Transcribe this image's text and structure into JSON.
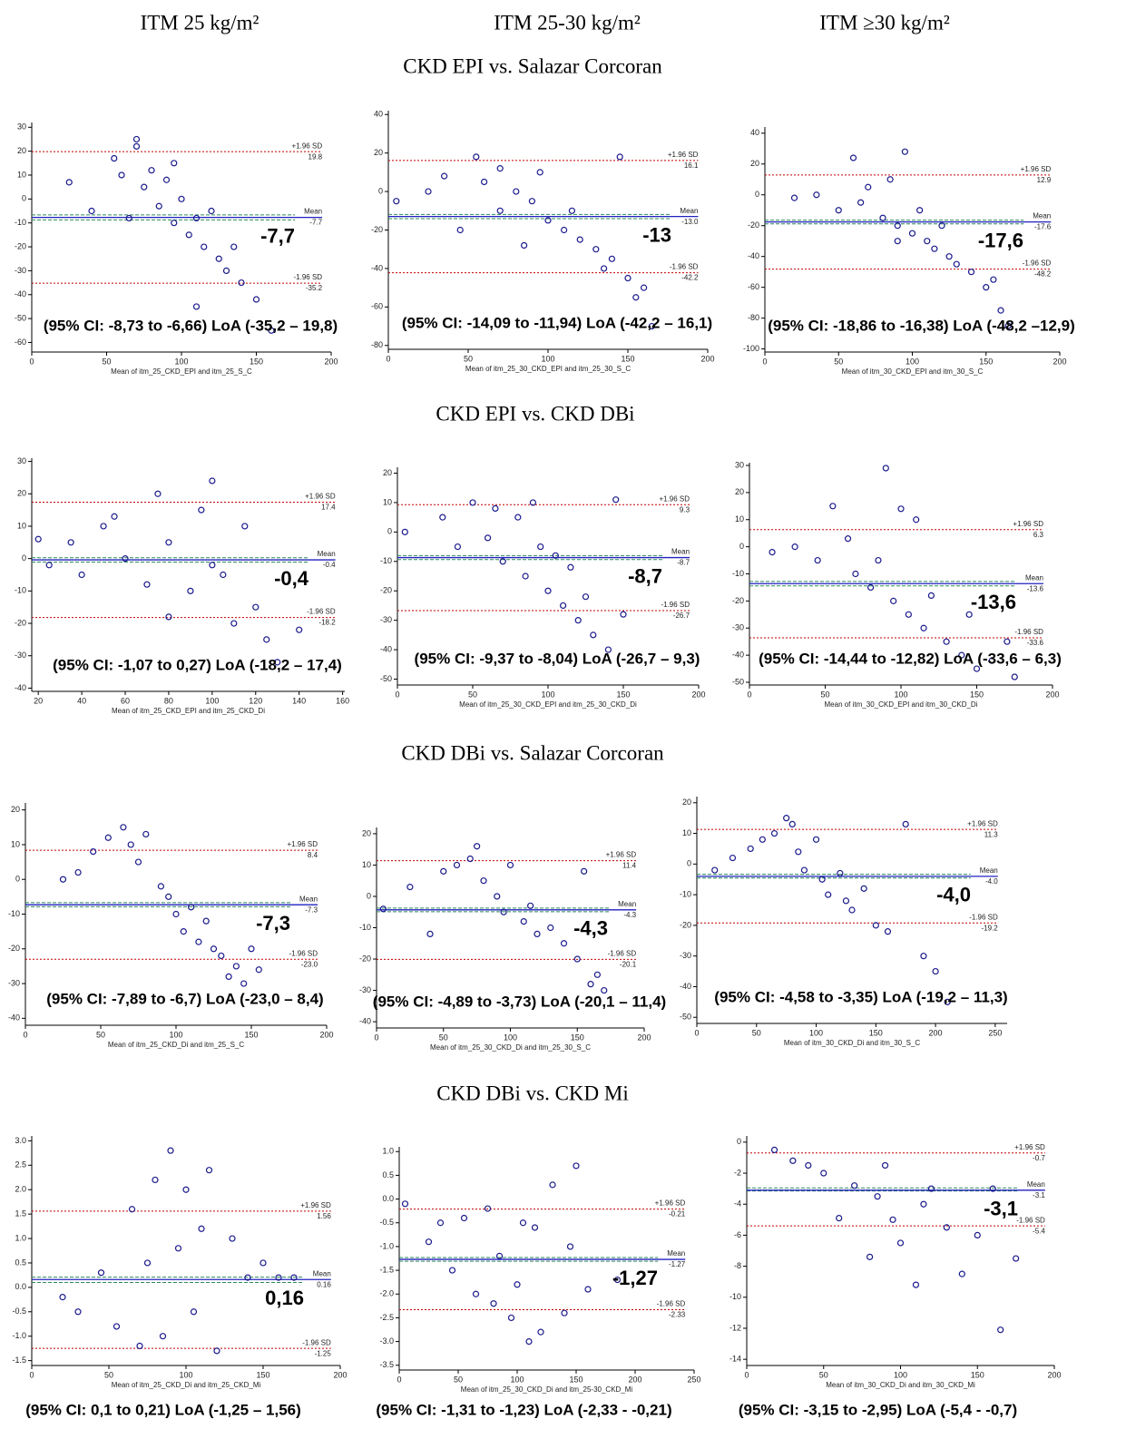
{
  "column_titles": [
    "ITM 25 kg/m²",
    "ITM 25-30 kg/m²",
    "ITM ≥30 kg/m²"
  ],
  "row_titles": [
    "CKD EPI vs. Salazar Corcoran",
    "CKD EPI vs. CKD DBi",
    "CKD DBi vs. Salazar Corcoran",
    "CKD DBi vs. CKD Mi"
  ],
  "chart_data": [
    {
      "type": "scatter",
      "x_label": "Mean of itm_25_CKD_EPI and itm_25_S_C",
      "xlim": [
        0,
        200
      ],
      "xticks": [
        0,
        50,
        100,
        150,
        200
      ],
      "ylim": [
        -64,
        32
      ],
      "yticks": [
        30,
        20,
        10,
        0,
        -10,
        -20,
        -30,
        -40,
        -50,
        -60
      ],
      "x": [
        25,
        40,
        55,
        60,
        70,
        75,
        80,
        85,
        90,
        95,
        100,
        105,
        110,
        115,
        120,
        125,
        130,
        140,
        150,
        160,
        70,
        95,
        110,
        135,
        65
      ],
      "values": [
        7,
        -5,
        17,
        10,
        22,
        5,
        12,
        -3,
        8,
        -10,
        0,
        -15,
        -8,
        -20,
        -5,
        -25,
        -30,
        -35,
        -42,
        -55,
        25,
        15,
        -45,
        -20,
        -8
      ],
      "color": "#1a1a8c",
      "lines": [
        {
          "name": "+1.96 SD",
          "value": 19.8
        },
        {
          "name": "Mean",
          "value": -7.7
        },
        {
          "name": "-1.96 SD",
          "value": -35.2
        }
      ],
      "mean_ci": [
        -8.73,
        -6.66
      ],
      "annotation": "-7,7",
      "ci_text": "(95% CI: -8,73 to -6,66)  LoA (-35,2 – 19,8)"
    },
    {
      "type": "scatter",
      "x_label": "Mean of itm_25_30_CKD_EPI and itm_25_30_S_C",
      "xlim": [
        0,
        200
      ],
      "xticks": [
        0,
        50,
        100,
        150,
        200
      ],
      "ylim": [
        -82,
        42
      ],
      "yticks": [
        40,
        20,
        0,
        -20,
        -40,
        -60,
        -80
      ],
      "x": [
        5,
        25,
        35,
        45,
        55,
        60,
        70,
        80,
        90,
        95,
        100,
        110,
        115,
        120,
        130,
        135,
        140,
        150,
        155,
        160,
        165,
        145,
        70,
        85
      ],
      "values": [
        -5,
        0,
        8,
        -20,
        18,
        5,
        12,
        0,
        -5,
        10,
        -15,
        -20,
        -10,
        -25,
        -30,
        -40,
        -35,
        -45,
        -55,
        -50,
        -70,
        18,
        -10,
        -28
      ],
      "color": "#1a1a8c",
      "lines": [
        {
          "name": "+1.96 SD",
          "value": 16.1
        },
        {
          "name": "Mean",
          "value": -13,
          "label": "-13.0"
        },
        {
          "name": "-1.96 SD",
          "value": -42.2
        }
      ],
      "mean_ci": [
        -14.09,
        -11.94
      ],
      "annotation": "-13",
      "ci_text": "(95% CI: -14,09 to -11,94) LoA (-42,2 – 16,1)"
    },
    {
      "type": "scatter",
      "x_label": "Mean of itm_30_CKD_EPI and itm_30_S_C",
      "xlim": [
        0,
        200
      ],
      "xticks": [
        0,
        50,
        100,
        150,
        200
      ],
      "ylim": [
        -102,
        44
      ],
      "yticks": [
        40,
        20,
        0,
        -20,
        -40,
        -60,
        -80,
        -100
      ],
      "x": [
        20,
        35,
        50,
        60,
        65,
        70,
        80,
        85,
        90,
        95,
        100,
        105,
        110,
        115,
        120,
        125,
        130,
        140,
        150,
        155,
        160,
        165,
        90
      ],
      "values": [
        -2,
        0,
        -10,
        24,
        -5,
        5,
        -15,
        10,
        -20,
        28,
        -25,
        -10,
        -30,
        -35,
        -20,
        -40,
        -45,
        -50,
        -60,
        -55,
        -75,
        -85,
        -30
      ],
      "color": "#1a1a8c",
      "lines": [
        {
          "name": "+1.96 SD",
          "value": 12.9
        },
        {
          "name": "Mean",
          "value": -17.6
        },
        {
          "name": "-1.96 SD",
          "value": -48.2
        }
      ],
      "mean_ci": [
        -18.86,
        -16.38
      ],
      "annotation": "-17,6",
      "ci_text": "(95% CI: -18,86 to -16,38) LoA (-48,2 –12,9)"
    },
    {
      "type": "scatter",
      "x_label": "Mean of itm_25_CKD_EPI and itm_25_CKD_Di",
      "xlim": [
        17,
        161
      ],
      "xticks": [
        20,
        40,
        60,
        80,
        100,
        120,
        140,
        160
      ],
      "ylim": [
        -41,
        31
      ],
      "yticks": [
        30,
        20,
        10,
        0,
        -10,
        -20,
        -30,
        -40
      ],
      "x": [
        20,
        25,
        35,
        40,
        50,
        55,
        60,
        70,
        75,
        80,
        90,
        95,
        100,
        105,
        110,
        115,
        120,
        125,
        130,
        140,
        80,
        100
      ],
      "values": [
        6,
        -2,
        5,
        -5,
        10,
        13,
        0,
        -8,
        20,
        5,
        -10,
        15,
        24,
        -5,
        -20,
        10,
        -15,
        -25,
        -32,
        -22,
        -18,
        -2
      ],
      "color": "#1a1a8c",
      "lines": [
        {
          "name": "+1.96 SD",
          "value": 17.4
        },
        {
          "name": "Mean",
          "value": -0.4
        },
        {
          "name": "-1.96 SD",
          "value": -18.2
        }
      ],
      "mean_ci": [
        -1.07,
        0.27
      ],
      "annotation": "-0,4",
      "ci_text": "(95% CI: -1,07 to 0,27) LoA (-18,2 – 17,4)"
    },
    {
      "type": "scatter",
      "x_label": "Mean of itm_25_30_CKD_EPI and itm_25_30_CKD_Di",
      "xlim": [
        0,
        200
      ],
      "xticks": [
        0,
        50,
        100,
        150,
        200
      ],
      "ylim": [
        -52,
        22
      ],
      "yticks": [
        20,
        10,
        0,
        -10,
        -20,
        -30,
        -40,
        -50
      ],
      "x": [
        5,
        30,
        40,
        50,
        60,
        65,
        70,
        80,
        85,
        90,
        100,
        105,
        110,
        115,
        120,
        125,
        130,
        140,
        145,
        150,
        95
      ],
      "values": [
        0,
        5,
        -5,
        10,
        -2,
        8,
        -10,
        5,
        -15,
        10,
        -20,
        -8,
        -25,
        -12,
        -30,
        -22,
        -35,
        -40,
        11,
        -28,
        -5
      ],
      "color": "#1a1a8c",
      "lines": [
        {
          "name": "+1.96 SD",
          "value": 9.3
        },
        {
          "name": "Mean",
          "value": -8.7
        },
        {
          "name": "-1.96 SD",
          "value": -26.7
        }
      ],
      "mean_ci": [
        -9.37,
        -8.04
      ],
      "annotation": "-8,7",
      "ci_text": "(95% CI: -9,37 to -8,04) LoA (-26,7 – 9,3)"
    },
    {
      "type": "scatter",
      "x_label": "Mean of itm_30_CKD_EPI and itm_30_CKD_Di",
      "xlim": [
        0,
        200
      ],
      "xticks": [
        0,
        50,
        100,
        150,
        200
      ],
      "ylim": [
        -51,
        31
      ],
      "yticks": [
        30,
        20,
        10,
        0,
        -10,
        -20,
        -30,
        -40,
        -50
      ],
      "x": [
        15,
        30,
        45,
        55,
        65,
        70,
        80,
        85,
        90,
        95,
        100,
        105,
        110,
        115,
        120,
        130,
        140,
        145,
        150,
        160,
        170,
        175
      ],
      "values": [
        -2,
        0,
        -5,
        15,
        3,
        -10,
        -15,
        -5,
        29,
        -20,
        14,
        -25,
        10,
        -30,
        -18,
        -35,
        -40,
        -25,
        -45,
        -42,
        -35,
        -48
      ],
      "color": "#1a1a8c",
      "lines": [
        {
          "name": "+1.96 SD",
          "value": 6.3
        },
        {
          "name": "Mean",
          "value": -13.6
        },
        {
          "name": "-1.96 SD",
          "value": -33.6
        }
      ],
      "mean_ci": [
        -14.44,
        -12.82
      ],
      "annotation": "-13,6",
      "ci_text": "(95% CI: -14,44 to -12,82) LoA (-33,6 – 6,3)"
    },
    {
      "type": "scatter",
      "x_label": "Mean of itm_25_CKD_Di and itm_25_S_C",
      "xlim": [
        0,
        200
      ],
      "xticks": [
        0,
        50,
        100,
        150,
        200
      ],
      "ylim": [
        -42,
        22
      ],
      "yticks": [
        20,
        10,
        0,
        -10,
        -20,
        -30,
        -40
      ],
      "x": [
        25,
        35,
        45,
        55,
        65,
        70,
        75,
        80,
        90,
        95,
        100,
        105,
        110,
        115,
        120,
        125,
        130,
        135,
        140,
        145,
        150,
        155
      ],
      "values": [
        0,
        2,
        8,
        12,
        15,
        10,
        5,
        13,
        -2,
        -5,
        -10,
        -15,
        -8,
        -18,
        -12,
        -20,
        -22,
        -28,
        -25,
        -30,
        -20,
        -26
      ],
      "color": "#1a1a8c",
      "lines": [
        {
          "name": "+1.96 SD",
          "value": 8.4
        },
        {
          "name": "Mean",
          "value": -7.3
        },
        {
          "name": "-1.96 SD",
          "value": -23,
          "label": "-23.0"
        }
      ],
      "mean_ci": [
        -7.89,
        -6.7
      ],
      "annotation": "-7,3",
      "ci_text": "(95% CI: -7,89 to -6,7) LoA (-23,0 – 8,4)"
    },
    {
      "type": "scatter",
      "x_label": "Mean of itm_25_30_CKD_Di and itm_25_30_S_C",
      "xlim": [
        0,
        200
      ],
      "xticks": [
        0,
        50,
        100,
        150,
        200
      ],
      "ylim": [
        -42,
        22
      ],
      "yticks": [
        20,
        10,
        0,
        -10,
        -20,
        -30,
        -40
      ],
      "x": [
        5,
        25,
        40,
        50,
        60,
        70,
        75,
        80,
        90,
        95,
        100,
        110,
        115,
        120,
        130,
        140,
        150,
        155,
        160,
        165,
        170
      ],
      "values": [
        -4,
        3,
        -12,
        8,
        10,
        12,
        16,
        5,
        0,
        -5,
        10,
        -8,
        -3,
        -12,
        -10,
        -15,
        -20,
        8,
        -28,
        -25,
        -30
      ],
      "color": "#1a1a8c",
      "lines": [
        {
          "name": "+1.96 SD",
          "value": 11.4
        },
        {
          "name": "Mean",
          "value": -4.3
        },
        {
          "name": "-1.96 SD",
          "value": -20.1
        }
      ],
      "mean_ci": [
        -4.89,
        -3.73
      ],
      "annotation": "-4,3",
      "ci_text": "(95% CI: -4,89 to -3,73) LoA (-20,1 – 11,4)"
    },
    {
      "type": "scatter",
      "x_label": "Mean of itm_30_CKD_Di and itm_30_S_C",
      "xlim": [
        0,
        260
      ],
      "xticks": [
        0,
        50,
        100,
        150,
        200,
        250
      ],
      "ylim": [
        -52,
        22
      ],
      "yticks": [
        20,
        10,
        0,
        -10,
        -20,
        -30,
        -40,
        -50
      ],
      "x": [
        15,
        30,
        45,
        55,
        65,
        75,
        80,
        85,
        90,
        100,
        105,
        110,
        120,
        125,
        130,
        140,
        150,
        160,
        175,
        190,
        200,
        210
      ],
      "values": [
        -2,
        2,
        5,
        8,
        10,
        15,
        13,
        4,
        -2,
        8,
        -5,
        -10,
        -3,
        -12,
        -15,
        -8,
        -20,
        -22,
        13,
        -30,
        -35,
        -45
      ],
      "color": "#1a1a8c",
      "lines": [
        {
          "name": "+1.96 SD",
          "value": 11.3
        },
        {
          "name": "Mean",
          "value": -4,
          "label": "-4.0"
        },
        {
          "name": "-1.96 SD",
          "value": -19.2
        }
      ],
      "mean_ci": [
        -4.58,
        -3.35
      ],
      "annotation": "-4,0",
      "ci_text": "(95% CI: -4,58 to -3,35) LoA (-19,2 – 11,3)"
    },
    {
      "type": "scatter",
      "x_label": "Mean of itm_25_CKD_Di and itm_25_CKD_Mi",
      "xlim": [
        0,
        200
      ],
      "xticks": [
        0,
        50,
        100,
        150,
        200
      ],
      "ylim": [
        -1.6,
        3.1
      ],
      "yticks": [
        {
          "value": 3,
          "label": "3.0"
        },
        2.5,
        {
          "value": 2,
          "label": "2.0"
        },
        1.5,
        {
          "value": 1,
          "label": "1.0"
        },
        0.5,
        {
          "value": 0,
          "label": "0.0"
        },
        -0.5,
        {
          "value": -1,
          "label": "-1.0"
        },
        -1.5
      ],
      "x": [
        20,
        30,
        45,
        55,
        65,
        70,
        75,
        80,
        85,
        90,
        95,
        100,
        105,
        110,
        115,
        120,
        130,
        140,
        150,
        160,
        170
      ],
      "values": [
        -0.2,
        -0.5,
        0.3,
        -0.8,
        1.6,
        -1.2,
        0.5,
        2.2,
        -1,
        2.8,
        0.8,
        2,
        -0.5,
        1.2,
        2.4,
        -1.3,
        1,
        0.2,
        0.5,
        0.2,
        0.2
      ],
      "color": "#1a1a8c",
      "lines": [
        {
          "name": "+1.96 SD",
          "value": 1.56
        },
        {
          "name": "Mean",
          "value": 0.16
        },
        {
          "name": "-1.96 SD",
          "value": -1.25
        }
      ],
      "mean_ci": [
        0.1,
        0.21
      ],
      "annotation": "0,16",
      "ci_text": "(95% CI: 0,1 to 0,21)  LoA (-1,25 – 1,56)"
    },
    {
      "type": "scatter",
      "x_label": "Mean of itm_25_30_CKD_Di and itm_25-30_CKD_Mi",
      "xlim": [
        0,
        250
      ],
      "xticks": [
        0,
        50,
        100,
        150,
        200,
        250
      ],
      "ylim": [
        -3.6,
        1.1
      ],
      "yticks": [
        {
          "value": 1,
          "label": "1.0"
        },
        0.5,
        {
          "value": 0,
          "label": "0.0"
        },
        -0.5,
        {
          "value": -1,
          "label": "-1.0"
        },
        -1.5,
        {
          "value": -2,
          "label": "-2.0"
        },
        -2.5,
        {
          "value": -3,
          "label": "-3.0"
        },
        -3.5
      ],
      "x": [
        5,
        25,
        35,
        45,
        55,
        65,
        75,
        85,
        95,
        100,
        110,
        115,
        120,
        130,
        140,
        145,
        150,
        160,
        185,
        80,
        105
      ],
      "values": [
        -0.1,
        -0.9,
        -0.5,
        -1.5,
        -0.4,
        -2,
        -0.2,
        -1.2,
        -2.5,
        -1.8,
        -3,
        -0.6,
        -2.8,
        0.3,
        -2.4,
        -1,
        0.7,
        -1.9,
        -1.7,
        -2.2,
        -0.5
      ],
      "color": "#1a1a8c",
      "lines": [
        {
          "name": "+1.96 SD",
          "value": -0.21
        },
        {
          "name": "Mean",
          "value": -1.27
        },
        {
          "name": "-1.96 SD",
          "value": -2.33
        }
      ],
      "mean_ci": [
        -1.31,
        -1.23
      ],
      "annotation": "-1,27",
      "ci_text": "(95% CI: -1,31 to -1,23) LoA (-2,33 - -0,21)"
    },
    {
      "type": "scatter",
      "x_label": "Mean of itm_30_CKD_Di and itm_30_CKD_Mi",
      "xlim": [
        0,
        200
      ],
      "xticks": [
        0,
        50,
        100,
        150,
        200
      ],
      "ylim": [
        -14.4,
        0.4
      ],
      "yticks": [
        0,
        -2,
        -4,
        -6,
        -8,
        -10,
        -12,
        -14
      ],
      "x": [
        18,
        30,
        40,
        50,
        60,
        70,
        80,
        85,
        90,
        95,
        100,
        110,
        115,
        120,
        130,
        140,
        150,
        160,
        165,
        175
      ],
      "values": [
        -0.5,
        -1.2,
        -1.5,
        -2,
        -4.9,
        -2.8,
        -7.4,
        -3.5,
        -1.5,
        -5,
        -6.5,
        -9.2,
        -4,
        -3,
        -5.5,
        -8.5,
        -6,
        -3,
        -12.1,
        -7.5
      ],
      "color": "#1a1a8c",
      "lines": [
        {
          "name": "+1.96 SD",
          "value": -0.7
        },
        {
          "name": "Mean",
          "value": -3.1
        },
        {
          "name": "-1.96 SD",
          "value": -5.4
        }
      ],
      "mean_ci": [
        -3.15,
        -2.95
      ],
      "annotation": "-3,1",
      "ci_text": "(95% CI: -3,15 to -2,95) LoA (-5,4 - -0,7)"
    }
  ]
}
